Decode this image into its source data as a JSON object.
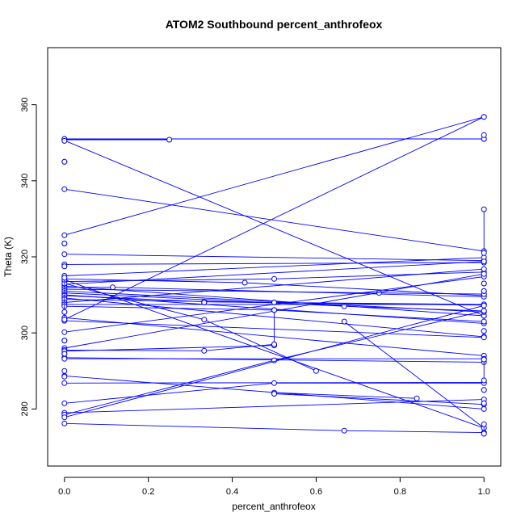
{
  "chart_data": {
    "type": "line",
    "title": "ATOM2 Southbound percent_anthrofeox",
    "xlabel": "percent_anthrofeox",
    "ylabel": "Theta (K)",
    "xlim": [
      -0.04,
      1.04
    ],
    "ylim": [
      265,
      375
    ],
    "x_ticks": [
      0.0,
      0.2,
      0.4,
      0.6,
      0.8,
      1.0
    ],
    "x_tick_labels": [
      "0.0",
      "0.2",
      "0.4",
      "0.6",
      "0.8",
      "1.0"
    ],
    "y_ticks": [
      280,
      300,
      320,
      340,
      360
    ],
    "y_tick_labels": [
      "280",
      "300",
      "320",
      "340",
      "360"
    ],
    "grid": false,
    "color": "#0000ff",
    "series": [
      {
        "x": [
          0.0,
          1.0
        ],
        "y": [
          351.0,
          351.0
        ]
      },
      {
        "x": [
          0.0,
          0.25
        ],
        "y": [
          350.8,
          350.8
        ]
      },
      {
        "x": [
          0.0,
          1.0
        ],
        "y": [
          350.6,
          304.5
        ]
      },
      {
        "x": [
          0.0,
          1.0
        ],
        "y": [
          337.8,
          321.5
        ]
      },
      {
        "x": [
          0.0,
          1.0
        ],
        "y": [
          325.7,
          356.8
        ]
      },
      {
        "x": [
          0.0,
          1.0
        ],
        "y": [
          303.5,
          356.8
        ]
      },
      {
        "x": [
          0.0,
          1.0
        ],
        "y": [
          320.7,
          319.0
        ]
      },
      {
        "x": [
          0.0,
          1.0
        ],
        "y": [
          318.0,
          318.5
        ]
      },
      {
        "x": [
          0.0,
          1.0
        ],
        "y": [
          315.0,
          319.8
        ]
      },
      {
        "x": [
          0.0,
          0.43,
          1.0
        ],
        "y": [
          314.2,
          313.2,
          309.8
        ]
      },
      {
        "x": [
          0.0,
          0.5,
          1.0
        ],
        "y": [
          313.5,
          314.2,
          316.0
        ]
      },
      {
        "x": [
          0.0,
          1.0
        ],
        "y": [
          312.8,
          318.8
        ]
      },
      {
        "x": [
          0.0,
          1.0
        ],
        "y": [
          312.3,
          304.5
        ]
      },
      {
        "x": [
          0.0,
          0.115,
          1.0
        ],
        "y": [
          312.0,
          312.0,
          309.5
        ]
      },
      {
        "x": [
          0.0,
          0.75,
          1.0
        ],
        "y": [
          311.5,
          310.5,
          310.2
        ]
      },
      {
        "x": [
          0.0,
          1.0
        ],
        "y": [
          311.0,
          305.5
        ]
      },
      {
        "x": [
          0.0,
          0.667,
          1.0
        ],
        "y": [
          310.5,
          307.0,
          305.8
        ]
      },
      {
        "x": [
          0.0,
          1.0
        ],
        "y": [
          310.0,
          302.5
        ]
      },
      {
        "x": [
          0.0,
          0.333,
          1.0
        ],
        "y": [
          309.8,
          308.2,
          307.3
        ]
      },
      {
        "x": [
          0.0,
          1.0
        ],
        "y": [
          309.2,
          299.0
        ]
      },
      {
        "x": [
          0.0,
          0.5,
          1.0
        ],
        "y": [
          308.8,
          308.0,
          307.5
        ]
      },
      {
        "x": [
          0.0,
          1.0
        ],
        "y": [
          308.0,
          316.8
        ]
      },
      {
        "x": [
          0.0,
          1.0
        ],
        "y": [
          307.5,
          307.5
        ]
      },
      {
        "x": [
          0.0,
          0.5,
          1.0
        ],
        "y": [
          307.0,
          306.0,
          303.0
        ]
      },
      {
        "x": [
          0.0,
          0.333,
          0.6
        ],
        "y": [
          313.0,
          303.5,
          290.0
        ]
      },
      {
        "x": [
          0.0,
          1.0
        ],
        "y": [
          314.0,
          275.0
        ]
      },
      {
        "x": [
          0.0,
          1.0
        ],
        "y": [
          304.0,
          294.0
        ]
      },
      {
        "x": [
          0.0,
          1.0
        ],
        "y": [
          303.2,
          298.8
        ]
      },
      {
        "x": [
          0.0,
          1.0
        ],
        "y": [
          300.2,
          314.8
        ]
      },
      {
        "x": [
          0.0,
          1.0
        ],
        "y": [
          296.0,
          315.5
        ]
      },
      {
        "x": [
          0.0,
          0.333,
          0.5
        ],
        "y": [
          295.5,
          295.3,
          297.0
        ]
      },
      {
        "x": [
          0.0,
          0.5
        ],
        "y": [
          295.2,
          296.7
        ]
      },
      {
        "x": [
          0.0,
          1.0
        ],
        "y": [
          293.5,
          292.3
        ]
      },
      {
        "x": [
          0.0,
          1.0
        ],
        "y": [
          293.2,
          293.2
        ]
      },
      {
        "x": [
          0.0,
          1.0
        ],
        "y": [
          288.7,
          280.0
        ]
      },
      {
        "x": [
          0.0,
          1.0
        ],
        "y": [
          286.8,
          287.0
        ]
      },
      {
        "x": [
          0.0,
          0.5,
          1.0
        ],
        "y": [
          281.5,
          286.8,
          286.8
        ]
      },
      {
        "x": [
          0.0,
          1.0
        ],
        "y": [
          279.0,
          282.5
        ]
      },
      {
        "x": [
          0.0,
          0.5,
          1.0
        ],
        "y": [
          278.5,
          292.8,
          305.8
        ]
      },
      {
        "x": [
          0.0,
          1.0
        ],
        "y": [
          277.8,
          307.2
        ]
      },
      {
        "x": [
          0.0,
          0.667,
          1.0
        ],
        "y": [
          276.2,
          274.3,
          273.8
        ]
      },
      {
        "x": [
          0.5,
          0.84
        ],
        "y": [
          284.3,
          282.8
        ]
      },
      {
        "x": [
          0.5,
          1.0
        ],
        "y": [
          284.0,
          281.2
        ]
      },
      {
        "x": [
          0.667,
          1.0
        ],
        "y": [
          303.0,
          275.0
        ]
      },
      {
        "x": [
          0.5,
          0.5
        ],
        "y": [
          306.0,
          297.0
        ]
      },
      {
        "x": [
          0.333,
          0.5
        ],
        "y": [
          308.2,
          308.0
        ]
      },
      {
        "x": [
          0.0,
          0.0
        ],
        "y": [
          351.0,
          350.5
        ]
      },
      {
        "x": [
          1.0,
          1.0
        ],
        "y": [
          351.0,
          352.0
        ]
      },
      {
        "x": [
          1.0,
          1.0
        ],
        "y": [
          332.5,
          321.0
        ]
      },
      {
        "x": [
          0.0,
          0.0
        ],
        "y": [
          314.5,
          303.5
        ]
      },
      {
        "x": [
          0.0,
          0.0
        ],
        "y": [
          290.0,
          288.5
        ]
      },
      {
        "x": [
          1.0,
          1.0
        ],
        "y": [
          276.0,
          273.5
        ]
      },
      {
        "x": [
          1.0,
          1.0
        ],
        "y": [
          293.0,
          287.5
        ]
      },
      {
        "x": [
          0.0,
          0.0
        ],
        "y": [
          345.0,
          345.0
        ]
      },
      {
        "x": [
          0.0,
          0.0
        ],
        "y": [
          323.5,
          323.5
        ]
      },
      {
        "x": [
          0.0,
          0.0
        ],
        "y": [
          317.5,
          317.5
        ]
      },
      {
        "x": [
          0.0,
          0.0
        ],
        "y": [
          305.5,
          305.5
        ]
      },
      {
        "x": [
          0.0,
          0.0
        ],
        "y": [
          298.0,
          298.0
        ]
      },
      {
        "x": [
          0.0,
          0.0
        ],
        "y": [
          294.5,
          294.5
        ]
      },
      {
        "x": [
          1.0,
          1.0
        ],
        "y": [
          300.5,
          300.5
        ]
      },
      {
        "x": [
          1.0,
          1.0
        ],
        "y": [
          313.0,
          313.0
        ]
      },
      {
        "x": [
          1.0,
          1.0
        ],
        "y": [
          311.0,
          311.0
        ]
      },
      {
        "x": [
          1.0,
          1.0
        ],
        "y": [
          285.0,
          285.0
        ]
      },
      {
        "x": [
          1.0,
          1.0
        ],
        "y": [
          281.5,
          281.5
        ]
      },
      {
        "x": [
          0.333,
          0.333
        ],
        "y": [
          308.0,
          308.0
        ]
      }
    ]
  }
}
